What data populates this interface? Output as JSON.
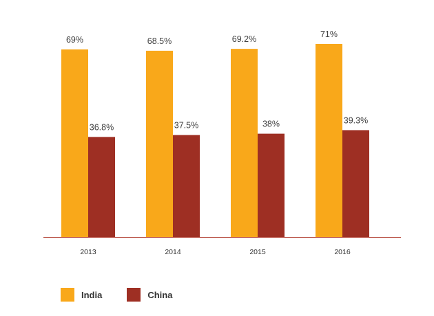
{
  "chart_data": {
    "type": "bar",
    "categories": [
      "2013",
      "2014",
      "2015",
      "2016"
    ],
    "series": [
      {
        "name": "India",
        "color": "#F9A81A",
        "values": [
          69,
          68.5,
          69.2,
          71
        ],
        "labels": [
          "69%",
          "68.5%",
          "69.2%",
          "71%"
        ]
      },
      {
        "name": "China",
        "color": "#9E2F23",
        "values": [
          36.8,
          37.5,
          38,
          39.3
        ],
        "labels": [
          "36.8%",
          "37.5%",
          "38%",
          "39.3%"
        ]
      }
    ],
    "ylim": [
      0,
      71
    ],
    "grid": false,
    "legend_position": "bottom-left",
    "axis_color": "#B5463A"
  }
}
